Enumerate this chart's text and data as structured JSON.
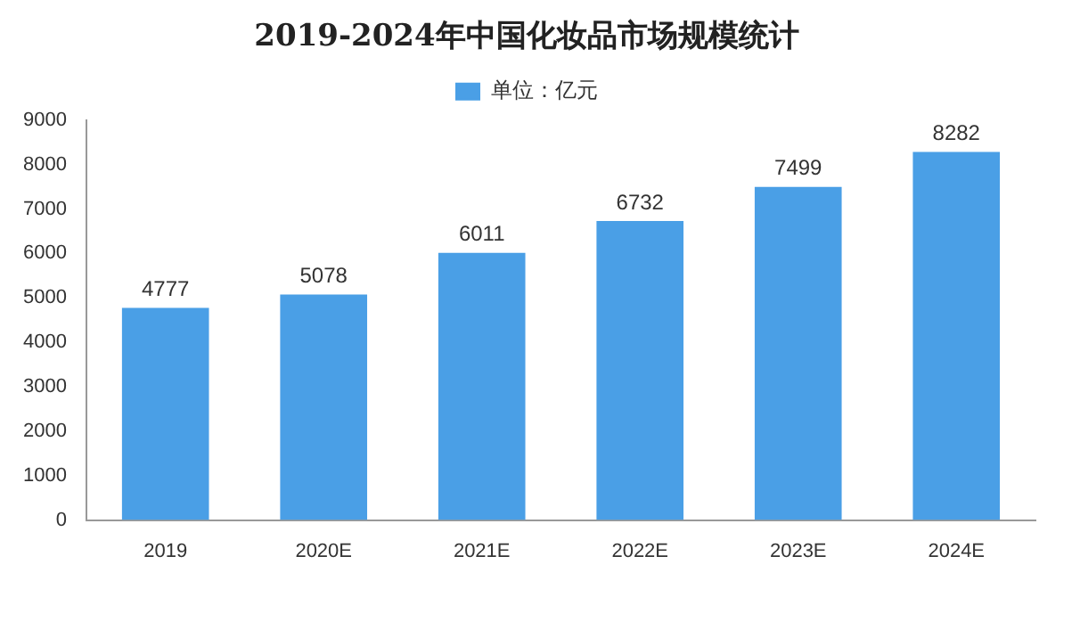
{
  "chart_data": {
    "type": "bar",
    "title": "2019-2024年中国化妆品市场规模统计",
    "categories": [
      "2019",
      "2020E",
      "2021E",
      "2022E",
      "2023E",
      "2024E"
    ],
    "series": [
      {
        "name": "单位：亿元",
        "color": "#4a9fe6",
        "values": [
          4777,
          5078,
          6011,
          6732,
          7499,
          8282
        ]
      }
    ],
    "ylim": [
      0,
      9000
    ],
    "yticks": [
      0,
      1000,
      2000,
      3000,
      4000,
      5000,
      6000,
      7000,
      8000,
      9000
    ],
    "grid": false,
    "legend": "top",
    "data_labels": true
  }
}
